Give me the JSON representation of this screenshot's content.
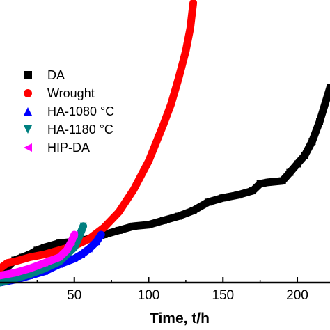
{
  "chart_data": {
    "type": "line",
    "title": "",
    "xlabel": "Time, t/h",
    "ylabel": "",
    "x_ticks": [
      50,
      100,
      150,
      200
    ],
    "x_tick_labels": [
      "50",
      "100",
      "150",
      "200"
    ],
    "xlim": [
      0,
      222
    ],
    "ylim": [
      0,
      1
    ],
    "grid": false,
    "legend_position": "top-left",
    "series": [
      {
        "name": "DA",
        "marker": "square",
        "color": "#000000",
        "x": [
          0,
          5,
          10,
          15,
          20,
          25,
          30,
          40,
          50,
          60,
          70,
          80,
          90,
          100,
          110,
          120,
          130,
          140,
          150,
          160,
          170,
          175,
          180,
          190,
          195,
          200,
          205,
          210,
          215,
          222
        ],
        "y": [
          0.0,
          0.055,
          0.08,
          0.09,
          0.1,
          0.115,
          0.125,
          0.14,
          0.145,
          0.155,
          0.17,
          0.185,
          0.2,
          0.205,
          0.22,
          0.235,
          0.255,
          0.285,
          0.3,
          0.31,
          0.325,
          0.35,
          0.355,
          0.36,
          0.39,
          0.42,
          0.45,
          0.5,
          0.57,
          0.69
        ]
      },
      {
        "name": "Wrought",
        "marker": "circle",
        "color": "#ff0000",
        "x": [
          0,
          5,
          10,
          20,
          30,
          40,
          50,
          60,
          70,
          80,
          90,
          100,
          110,
          115,
          120,
          125,
          128,
          130
        ],
        "y": [
          0.05,
          0.07,
          0.075,
          0.09,
          0.1,
          0.115,
          0.13,
          0.155,
          0.195,
          0.25,
          0.33,
          0.43,
          0.56,
          0.63,
          0.72,
          0.82,
          0.9,
          0.99
        ]
      },
      {
        "name": "HA-1080 °C",
        "marker": "triangle-up",
        "color": "#0000ff",
        "x": [
          0,
          10,
          20,
          30,
          40,
          50,
          55,
          60,
          65,
          68
        ],
        "y": [
          0.0,
          0.01,
          0.025,
          0.04,
          0.065,
          0.085,
          0.1,
          0.12,
          0.145,
          0.17
        ]
      },
      {
        "name": "HA-1180 °C",
        "marker": "triangle-down",
        "color": "#008080",
        "x": [
          0,
          10,
          20,
          30,
          40,
          45,
          50,
          53,
          56
        ],
        "y": [
          0.0,
          0.015,
          0.03,
          0.05,
          0.075,
          0.1,
          0.125,
          0.16,
          0.2
        ]
      },
      {
        "name": "HIP-DA",
        "marker": "triangle-left",
        "color": "#ff00ff",
        "x": [
          0,
          10,
          20,
          30,
          40,
          45,
          48,
          50
        ],
        "y": [
          0.025,
          0.035,
          0.05,
          0.07,
          0.09,
          0.115,
          0.145,
          0.17
        ]
      }
    ]
  }
}
